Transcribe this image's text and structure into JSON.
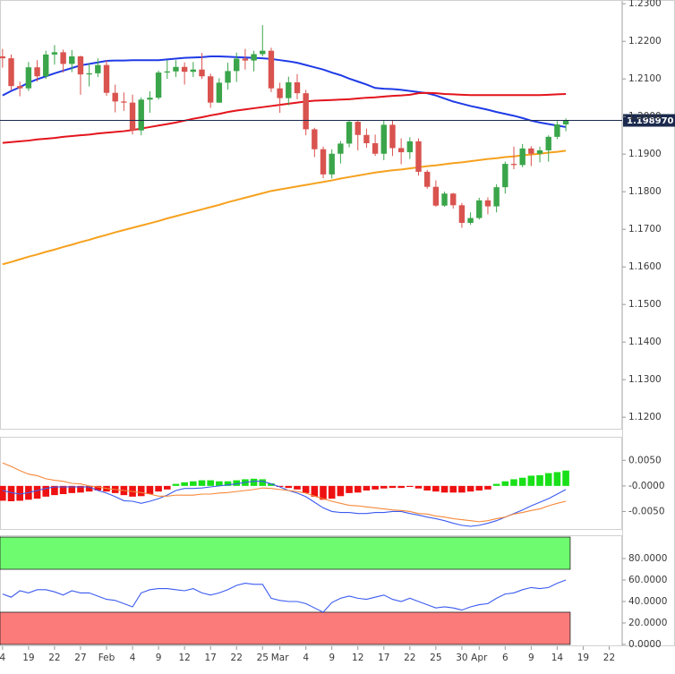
{
  "chart_data": [
    {
      "type": "candlestick",
      "categories": [
        "4",
        null,
        null,
        "19",
        null,
        null,
        "22",
        null,
        null,
        "27",
        null,
        null,
        "Feb",
        null,
        null,
        "4",
        null,
        null,
        "9",
        null,
        null,
        "12",
        null,
        null,
        "17",
        null,
        null,
        "22",
        null,
        null,
        "25",
        null,
        "Mar",
        null,
        null,
        "4",
        null,
        null,
        "9",
        null,
        null,
        "12",
        null,
        null,
        "17",
        null,
        null,
        "22",
        null,
        null,
        "25",
        null,
        null,
        "30",
        null,
        "Apr",
        null,
        null,
        "6",
        null,
        null,
        "9",
        null,
        null,
        "14",
        null,
        null,
        "19",
        null,
        null,
        "22",
        null
      ],
      "open": [
        1.216,
        1.2155,
        1.2081,
        1.2075,
        1.2131,
        1.2107,
        1.2165,
        1.2171,
        1.214,
        1.216,
        1.2112,
        1.2115,
        1.2137,
        1.2063,
        1.204,
        1.2037,
        1.1963,
        1.2045,
        1.205,
        1.2117,
        1.212,
        1.2132,
        1.2119,
        1.2125,
        1.2107,
        1.2037,
        1.209,
        1.2121,
        1.2154,
        1.2149,
        1.2166,
        1.2175,
        1.2075,
        1.2049,
        1.2091,
        1.2062,
        1.1966,
        1.1913,
        1.1846,
        1.1901,
        1.1928,
        1.1986,
        1.1951,
        1.1929,
        1.1901,
        1.1978,
        1.1916,
        1.1905,
        1.1934,
        1.1853,
        1.1813,
        1.1763,
        1.1795,
        1.1764,
        1.1717,
        1.173,
        1.1777,
        1.1761,
        1.1812,
        1.1874,
        1.1871,
        1.1915,
        1.1901,
        1.191,
        1.1946,
        1.1979,
        null,
        null,
        null,
        null,
        null,
        null
      ],
      "high": [
        1.218,
        1.2165,
        1.2093,
        1.2145,
        1.215,
        1.2175,
        1.219,
        1.2178,
        1.2177,
        1.2162,
        1.2142,
        1.2155,
        1.215,
        1.2085,
        1.2064,
        1.2058,
        1.2051,
        1.2067,
        1.2122,
        1.215,
        1.215,
        1.2144,
        1.2145,
        1.2169,
        1.2114,
        1.2102,
        1.2143,
        1.217,
        1.218,
        1.2175,
        1.2243,
        1.2183,
        1.209,
        1.2106,
        1.2113,
        1.2071,
        1.197,
        1.192,
        1.1913,
        1.1935,
        1.199,
        1.199,
        1.1968,
        1.1952,
        1.199,
        1.1989,
        1.1942,
        1.1945,
        1.1942,
        1.1858,
        1.183,
        1.18,
        1.1797,
        1.177,
        1.1745,
        1.1784,
        1.1785,
        1.182,
        1.188,
        1.192,
        1.1927,
        1.1921,
        1.192,
        1.195,
        1.1988,
        1.1995,
        null,
        null,
        null,
        null,
        null,
        null
      ],
      "low": [
        1.213,
        1.207,
        1.2054,
        1.2068,
        1.2093,
        1.21,
        1.2138,
        1.2117,
        1.2118,
        1.2058,
        1.208,
        1.2105,
        1.2055,
        1.2011,
        1.2015,
        1.1952,
        1.195,
        1.201,
        1.2045,
        1.21,
        1.2105,
        1.2085,
        1.2105,
        1.21,
        1.2023,
        1.2036,
        1.2072,
        1.2092,
        1.2125,
        1.212,
        1.216,
        1.2065,
        1.201,
        1.203,
        1.2046,
        1.195,
        1.1892,
        1.1836,
        1.1835,
        1.1875,
        1.1918,
        1.191,
        1.1917,
        1.1895,
        1.1884,
        1.1895,
        1.1873,
        1.1887,
        1.1843,
        1.1808,
        1.176,
        1.176,
        1.1755,
        1.1704,
        1.1712,
        1.1726,
        1.174,
        1.1745,
        1.1795,
        1.186,
        1.1865,
        1.1868,
        1.1878,
        1.188,
        1.194,
        1.1961,
        null,
        null,
        null,
        null,
        null,
        null
      ],
      "close": [
        1.2155,
        1.2081,
        1.2075,
        1.2131,
        1.2107,
        1.2165,
        1.2171,
        1.214,
        1.216,
        1.2112,
        1.2115,
        1.2137,
        1.2063,
        1.204,
        1.2037,
        1.1963,
        1.2045,
        1.205,
        1.2117,
        1.212,
        1.2132,
        1.2119,
        1.2125,
        1.2107,
        1.2037,
        1.209,
        1.2121,
        1.2154,
        1.2149,
        1.2166,
        1.2175,
        1.2075,
        1.2049,
        1.2091,
        1.2062,
        1.1966,
        1.1913,
        1.1846,
        1.1901,
        1.1928,
        1.1986,
        1.1951,
        1.1929,
        1.1901,
        1.1978,
        1.1916,
        1.1905,
        1.1934,
        1.1853,
        1.1813,
        1.1763,
        1.1795,
        1.1764,
        1.1717,
        1.173,
        1.1777,
        1.1761,
        1.1812,
        1.1874,
        1.1871,
        1.1915,
        1.1901,
        1.191,
        1.1946,
        1.1979,
        1.199,
        null,
        null,
        null,
        null,
        null,
        null
      ],
      "up_color": "#3aa54a",
      "down_color": "#d9534f",
      "overlays": [
        {
          "color": "#1f3be6",
          "values": [
            1.2056,
            1.2068,
            1.2078,
            1.209,
            1.2099,
            1.2107,
            1.2115,
            1.2122,
            1.2129,
            1.2136,
            1.214,
            1.2144,
            1.2148,
            1.2149,
            1.2149,
            1.215,
            1.215,
            1.215,
            1.215,
            1.2152,
            1.2154,
            1.2156,
            1.2157,
            1.2158,
            1.216,
            1.216,
            1.2159,
            1.2158,
            1.2157,
            1.2156,
            1.2155,
            1.2153,
            1.215,
            1.2147,
            1.2143,
            1.2137,
            1.2131,
            1.2125,
            1.2117,
            1.211,
            1.2101,
            1.2093,
            1.2085,
            1.2076,
            1.2074,
            1.2073,
            1.2071,
            1.2068,
            1.2065,
            1.2062,
            1.2056,
            1.2048,
            1.204,
            1.2034,
            1.2028,
            1.2023,
            1.2018,
            1.2012,
            1.2007,
            1.2002,
            1.1996,
            1.1989,
            1.1984,
            1.198,
            1.1976,
            1.1972,
            null,
            null,
            null,
            null,
            null,
            null
          ]
        },
        {
          "color": "#e3141c",
          "values": [
            1.193,
            1.1932,
            1.1934,
            1.1936,
            1.1939,
            1.1941,
            1.1943,
            1.1946,
            1.1948,
            1.195,
            1.1952,
            1.1955,
            1.1957,
            1.1959,
            1.1961,
            1.1964,
            1.1968,
            1.1972,
            1.1976,
            1.198,
            1.1984,
            1.1989,
            1.1994,
            1.1998,
            1.2003,
            1.2007,
            1.2012,
            1.2016,
            1.2019,
            1.2022,
            1.2025,
            1.2028,
            1.2031,
            1.2034,
            1.2037,
            1.204,
            1.2042,
            1.2043,
            1.2044,
            1.2045,
            1.2046,
            1.2048,
            1.205,
            1.2051,
            1.2053,
            1.2055,
            1.2056,
            1.2058,
            1.2062,
            1.2063,
            1.2062,
            1.206,
            1.2059,
            1.2058,
            1.2057,
            1.2057,
            1.2057,
            1.2057,
            1.2057,
            1.2057,
            1.2057,
            1.2057,
            1.2057,
            1.2058,
            1.2059,
            1.206,
            null,
            null,
            null,
            null,
            null,
            null
          ]
        },
        {
          "color": "#f6a11e",
          "values": [
            1.1607,
            1.1613,
            1.162,
            1.1627,
            1.1633,
            1.164,
            1.1646,
            1.1653,
            1.1659,
            1.1666,
            1.1672,
            1.1679,
            1.1685,
            1.1692,
            1.1698,
            1.1704,
            1.171,
            1.1716,
            1.1722,
            1.1729,
            1.1735,
            1.1741,
            1.1747,
            1.1753,
            1.1759,
            1.1765,
            1.1772,
            1.1778,
            1.1784,
            1.179,
            1.1796,
            1.1802,
            1.1806,
            1.181,
            1.1814,
            1.1818,
            1.1822,
            1.1826,
            1.183,
            1.1835,
            1.1839,
            1.1843,
            1.1847,
            1.1851,
            1.1854,
            1.1857,
            1.1859,
            1.1862,
            1.1865,
            1.1868,
            1.187,
            1.1873,
            1.1876,
            1.1878,
            1.1881,
            1.1884,
            1.1887,
            1.1889,
            1.1892,
            1.1894,
            1.1897,
            1.1899,
            1.1901,
            1.1904,
            1.1906,
            1.1909,
            null,
            null,
            null,
            null,
            null,
            null
          ]
        }
      ],
      "ylim": [
        1.1167,
        1.231
      ],
      "yticks": [
        {
          "value": 1.23,
          "label": "1.2300"
        },
        {
          "value": 1.22,
          "label": "1.2200"
        },
        {
          "value": 1.21,
          "label": "1.2100"
        },
        {
          "value": 1.2,
          "label": "1.2000"
        },
        {
          "value": 1.19,
          "label": "1.1900"
        },
        {
          "value": 1.18,
          "label": "1.1800"
        },
        {
          "value": 1.17,
          "label": "1.1700"
        },
        {
          "value": 1.16,
          "label": "1.1600"
        },
        {
          "value": 1.15,
          "label": "1.1500"
        },
        {
          "value": 1.14,
          "label": "1.1400"
        },
        {
          "value": 1.13,
          "label": "1.1300"
        },
        {
          "value": 1.12,
          "label": "1.1200"
        }
      ],
      "last_price": {
        "value": 1.19897,
        "label": "1.198970",
        "color": "#1b2a4e"
      }
    },
    {
      "type": "macd",
      "histogram": {
        "up_color": "#19e019",
        "down_color": "#ee1111",
        "values": [
          -0.0029,
          -0.003,
          -0.0029,
          -0.0027,
          -0.0025,
          -0.0021,
          -0.0018,
          -0.0016,
          -0.0014,
          -0.0013,
          -0.0011,
          -0.0009,
          -0.0011,
          -0.0014,
          -0.0018,
          -0.0021,
          -0.002,
          -0.0016,
          -0.0011,
          -0.0007,
          0.0004,
          0.0007,
          0.0009,
          0.0011,
          0.0011,
          0.0009,
          0.0009,
          0.0011,
          0.0013,
          0.0014,
          0.0013,
          0.0005,
          -0.0002,
          -0.0004,
          -0.0007,
          -0.0014,
          -0.0021,
          -0.0027,
          -0.0025,
          -0.002,
          -0.0014,
          -0.0013,
          -0.0009,
          -0.0007,
          -0.0005,
          -0.0004,
          -0.0004,
          -0.0002,
          -0.0005,
          -0.0009,
          -0.0011,
          -0.0013,
          -0.0013,
          -0.0013,
          -0.0011,
          -0.0009,
          -0.0007,
          0.0004,
          0.0009,
          0.0013,
          0.0016,
          0.002,
          0.0021,
          0.0025,
          0.0027,
          0.003,
          null,
          null,
          null,
          null,
          null,
          null
        ]
      },
      "lines": [
        {
          "color": "#3b5bef",
          "values": [
            -0.0009,
            -0.0013,
            -0.0016,
            -0.0013,
            -0.0009,
            -0.0005,
            -0.0002,
            -0.0002,
            -0.0002,
            -0.0002,
            -0.0002,
            -0.0009,
            -0.0014,
            -0.0021,
            -0.0029,
            -0.003,
            -0.0034,
            -0.003,
            -0.0025,
            -0.0018,
            -0.0009,
            -0.0005,
            -0.0005,
            -0.0004,
            -0.0002,
            0,
            0.0002,
            0.0004,
            0.0007,
            0.0009,
            0.0009,
            0.0004,
            -0.0002,
            -0.0009,
            -0.0014,
            -0.0021,
            -0.0032,
            -0.0043,
            -0.005,
            -0.0052,
            -0.0052,
            -0.0054,
            -0.0054,
            -0.0052,
            -0.0052,
            -0.005,
            -0.005,
            -0.0054,
            -0.0057,
            -0.0061,
            -0.0064,
            -0.0068,
            -0.0073,
            -0.0077,
            -0.0079,
            -0.0077,
            -0.0073,
            -0.0068,
            -0.0061,
            -0.0054,
            -0.0047,
            -0.0039,
            -0.0032,
            -0.0025,
            -0.0016,
            -0.0007,
            null,
            null,
            null,
            null,
            null,
            null
          ]
        },
        {
          "color": "#f5883a",
          "values": [
            0.0045,
            0.0038,
            0.003,
            0.0023,
            0.002,
            0.0014,
            0.0011,
            0.0009,
            0.0005,
            0.0004,
            0,
            -0.0002,
            -0.0005,
            -0.0007,
            -0.0009,
            -0.0011,
            -0.0013,
            -0.0016,
            -0.002,
            -0.002,
            -0.0018,
            -0.0018,
            -0.0018,
            -0.0016,
            -0.0016,
            -0.0014,
            -0.0013,
            -0.0011,
            -0.0009,
            -0.0007,
            -0.0004,
            -0.0005,
            -0.0007,
            -0.0009,
            -0.0011,
            -0.0014,
            -0.002,
            -0.0025,
            -0.003,
            -0.0034,
            -0.0038,
            -0.0039,
            -0.0041,
            -0.0043,
            -0.0045,
            -0.0047,
            -0.0048,
            -0.005,
            -0.0054,
            -0.0055,
            -0.0059,
            -0.0061,
            -0.0064,
            -0.0066,
            -0.0068,
            -0.007,
            -0.0068,
            -0.0064,
            -0.0061,
            -0.0055,
            -0.0052,
            -0.0048,
            -0.0045,
            -0.0039,
            -0.0034,
            -0.003,
            null,
            null,
            null,
            null,
            null,
            null
          ]
        }
      ],
      "ylim": [
        -0.0086,
        0.0096
      ],
      "yticks": [
        {
          "value": 0.005,
          "label": "0.0050"
        },
        {
          "value": 0,
          "label": "-0.0000"
        },
        {
          "value": -0.005,
          "label": "-0.0050"
        }
      ]
    },
    {
      "type": "rsi",
      "bands": [
        {
          "from": 70,
          "to": 100,
          "color": "#6ffb6f"
        },
        {
          "from": 0,
          "to": 30,
          "color": "#fb7b7b"
        }
      ],
      "lines": [
        {
          "color": "#3b5bef",
          "values": [
            47,
            44,
            50,
            48,
            51,
            51,
            49,
            46,
            50,
            48,
            48,
            45,
            42,
            41,
            38,
            35,
            48,
            51,
            52,
            52,
            51,
            50,
            52,
            48,
            46,
            48,
            51,
            55,
            57,
            56,
            56,
            43,
            41,
            40,
            40,
            38,
            34,
            30,
            39,
            43,
            45,
            43,
            42,
            44,
            46,
            42,
            40,
            43,
            40,
            37,
            34,
            35,
            34,
            32,
            35,
            37,
            38,
            43,
            47,
            48,
            51,
            53,
            52,
            53,
            57,
            60,
            null,
            null,
            null,
            null,
            null,
            null
          ]
        }
      ],
      "ylim": [
        -1.7,
        101.7
      ],
      "yticks": [
        {
          "value": 80,
          "label": "80.0000"
        },
        {
          "value": 60,
          "label": "60.0000"
        },
        {
          "value": 40,
          "label": "40.0000"
        },
        {
          "value": 20,
          "label": "20.0000"
        },
        {
          "value": 0,
          "label": "0.0000"
        }
      ]
    }
  ]
}
